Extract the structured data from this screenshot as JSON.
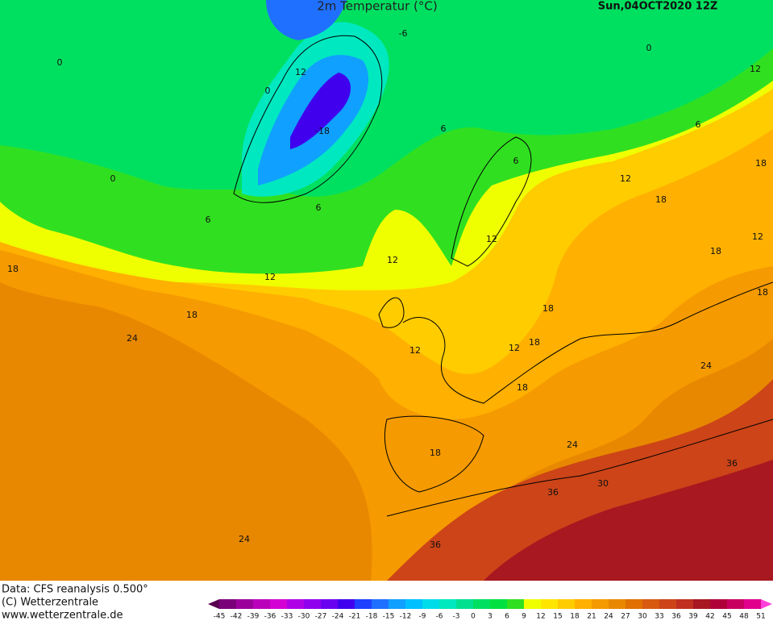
{
  "header": {
    "title": "2m Temperatur (°C)",
    "date": "Sun,04OCT2020 12Z"
  },
  "map": {
    "contour_labels": [
      "0",
      "0",
      "12",
      "-6",
      "-18",
      "0",
      "6",
      "6",
      "6",
      "6",
      "0",
      "12",
      "6",
      "18",
      "12",
      "18",
      "12",
      "12",
      "12",
      "18",
      "18",
      "24",
      "18",
      "12",
      "18",
      "18",
      "12",
      "18",
      "24",
      "18",
      "24",
      "18",
      "36",
      "30",
      "36",
      "36",
      "24",
      "12"
    ]
  },
  "footer": {
    "lines": [
      "Data: CFS reanalysis 0.500°",
      "(C) Wetterzentrale",
      "www.wetterzentrale.de"
    ]
  },
  "colorbar": {
    "labels": [
      -45,
      -42,
      -39,
      -36,
      -33,
      -30,
      -27,
      -24,
      -21,
      -18,
      -15,
      -12,
      -9,
      -6,
      -3,
      0,
      3,
      6,
      9,
      12,
      15,
      18,
      21,
      24,
      27,
      30,
      33,
      36,
      39,
      42,
      45,
      48,
      51
    ],
    "colors": [
      "#5a0050",
      "#7a007a",
      "#9b009b",
      "#bb00bb",
      "#d400d4",
      "#b000e6",
      "#9000ee",
      "#6a00f0",
      "#4000ee",
      "#2040ff",
      "#2070ff",
      "#10a0ff",
      "#00c0ff",
      "#00dcea",
      "#00e8c0",
      "#00e090",
      "#00e060",
      "#00e040",
      "#30e020",
      "#f0ff00",
      "#ffe600",
      "#ffcc00",
      "#ffb000",
      "#f59a00",
      "#e88800",
      "#e07000",
      "#d85a10",
      "#cc4418",
      "#c03020",
      "#a81820",
      "#b0003a",
      "#c80060",
      "#e0008c",
      "#ff40d8"
    ]
  }
}
